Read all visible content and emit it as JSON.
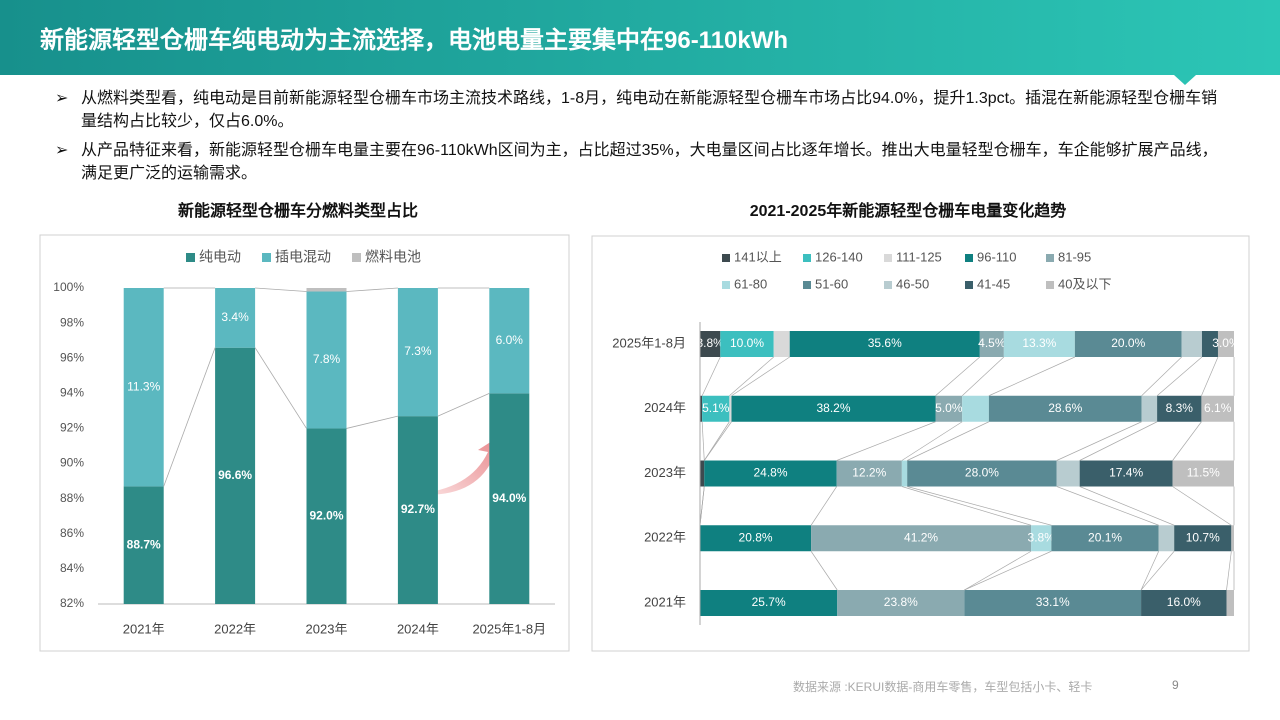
{
  "header": {
    "title": "新能源轻型仓栅车纯电动为主流选择，电池电量主要集中在96-110kWh"
  },
  "bullets": [
    "从燃料类型看，纯电动是目前新能源轻型仓栅车市场主流技术路线，1-8月，纯电动在新能源轻型仓栅车市场占比94.0%，提升1.3pct。插混在新能源轻型仓栅车销量结构占比较少，仅占6.0%。",
    "从产品特征来看，新能源轻型仓栅车电量主要在96-110kWh区间为主，占比超过35%，大电量区间占比逐年增长。推出大电量轻型仓栅车，车企能够扩展产品线，满足更广泛的运输需求。"
  ],
  "chart_data": [
    {
      "type": "bar",
      "title": "新能源轻型仓栅车分燃料类型占比",
      "categories": [
        "2021年",
        "2022年",
        "2023年",
        "2024年",
        "2025年1-8月"
      ],
      "series": [
        {
          "name": "纯电动",
          "color": "#2e8b87",
          "values": [
            88.7,
            96.6,
            92.0,
            92.7,
            94.0
          ],
          "value_labels": [
            "88.7%",
            "96.6%",
            "92.0%",
            "92.7%",
            "94.0%"
          ]
        },
        {
          "name": "插电混动",
          "color": "#5bb8c0",
          "values": [
            11.3,
            3.4,
            7.8,
            7.3,
            6.0
          ],
          "value_labels": [
            "11.3%",
            "3.4%",
            "7.8%",
            "7.3%",
            "6.0%"
          ]
        },
        {
          "name": "燃料电池",
          "color": "#bfbfbf",
          "values": [
            0,
            0,
            0.2,
            0,
            0
          ]
        }
      ],
      "ylim": [
        82,
        100
      ],
      "yticks": [
        {
          "value": 82,
          "label": "82%"
        },
        {
          "value": 84,
          "label": "84%"
        },
        {
          "value": 86,
          "label": "86%"
        },
        {
          "value": 88,
          "label": "88%"
        },
        {
          "value": 90,
          "label": "90%"
        },
        {
          "value": 92,
          "label": "92%"
        },
        {
          "value": 94,
          "label": "94%"
        },
        {
          "value": 96,
          "label": "96%"
        },
        {
          "value": 98,
          "label": "98%"
        },
        {
          "value": 100,
          "label": "100%"
        }
      ]
    },
    {
      "type": "barh",
      "title": "2021-2025年新能源轻型仓栅车电量变化趋势",
      "categories": [
        "2025年1-8月",
        "2024年",
        "2023年",
        "2022年",
        "2021年"
      ],
      "series": [
        {
          "name": "141以上",
          "color": "#3d4a4f",
          "values": [
            3.8,
            0.4,
            0.8,
            0,
            0
          ],
          "value_labels": [
            "3.8%",
            null,
            null,
            null,
            null
          ]
        },
        {
          "name": "126-140",
          "color": "#3cbfbf",
          "values": [
            10.0,
            5.1,
            0,
            0,
            0
          ],
          "value_labels": [
            "10.0%",
            "5.1%",
            null,
            null,
            null
          ]
        },
        {
          "name": "111-125",
          "color": "#d9d9d9",
          "values": [
            3.0,
            0.4,
            0,
            0,
            0
          ]
        },
        {
          "name": "96-110",
          "color": "#0f8080",
          "values": [
            35.6,
            38.2,
            24.8,
            20.8,
            25.7
          ],
          "value_labels": [
            "35.6%",
            "38.2%",
            "24.8%",
            "20.8%",
            "25.7%"
          ]
        },
        {
          "name": "81-95",
          "color": "#8aaab0",
          "values": [
            4.5,
            5.0,
            12.2,
            41.2,
            23.8
          ],
          "value_labels": [
            "4.5%",
            "5.0%",
            "12.2%",
            "41.2%",
            "23.8%"
          ]
        },
        {
          "name": "61-80",
          "color": "#a8dbe0",
          "values": [
            13.3,
            5.0,
            1.0,
            3.8,
            0
          ],
          "value_labels": [
            "13.3%",
            null,
            null,
            "3.8%",
            null
          ]
        },
        {
          "name": "51-60",
          "color": "#5a8a94",
          "values": [
            20.0,
            28.6,
            28.0,
            20.1,
            33.1
          ],
          "value_labels": [
            "20.0%",
            "28.6%",
            "28.0%",
            "20.1%",
            "33.1%"
          ]
        },
        {
          "name": "46-50",
          "color": "#b8ccd0",
          "values": [
            3.8,
            2.9,
            4.3,
            2.9,
            0
          ]
        },
        {
          "name": "41-45",
          "color": "#3a5f6a",
          "values": [
            3.0,
            8.3,
            17.4,
            10.7,
            16.0
          ],
          "value_labels": [
            null,
            "8.3%",
            "17.4%",
            "10.7%",
            "16.0%"
          ]
        },
        {
          "name": "40及以下",
          "color": "#bfbfbf",
          "values": [
            3.0,
            6.1,
            11.5,
            0.5,
            1.4
          ],
          "value_labels": [
            "3.0%",
            "6.1%",
            "11.5%",
            null,
            null
          ]
        }
      ]
    }
  ],
  "footer": {
    "source": "数据来源 :KERUI数据-商用车零售，车型包括小卡、轻卡",
    "page": "9"
  }
}
